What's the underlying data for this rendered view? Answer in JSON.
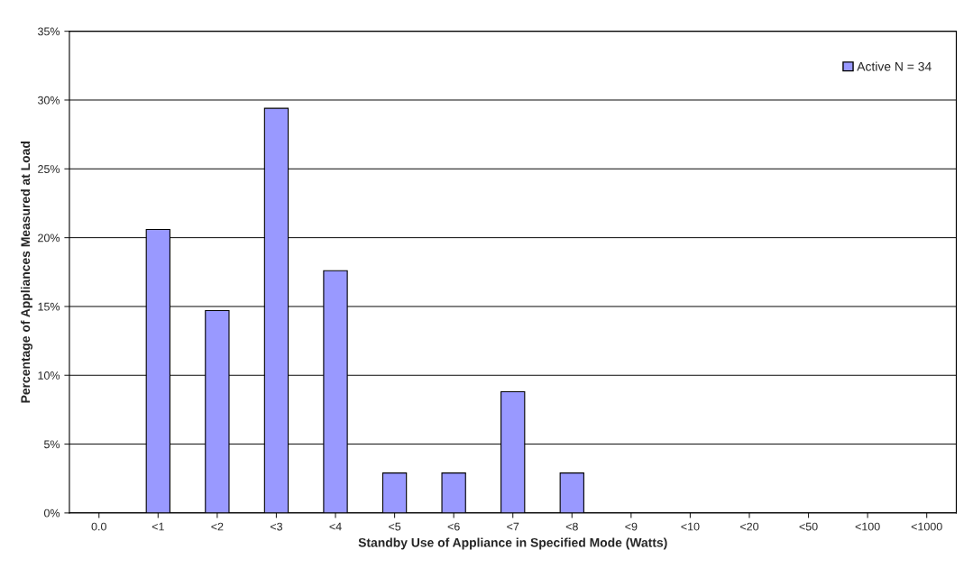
{
  "chart_data": {
    "type": "bar",
    "xlabel": "Standby Use of Appliance in Specified Mode (Watts)",
    "ylabel": "Percentage of Appliances Measured at Load",
    "categories": [
      "0.0",
      "<1",
      "<2",
      "<3",
      "<4",
      "<5",
      "<6",
      "<7",
      "<8",
      "<9",
      "<10",
      "<20",
      "<50",
      "<100",
      "<1000"
    ],
    "series": [
      {
        "name": "Active N = 34",
        "color": "#9999ff",
        "values": [
          0,
          20.6,
          14.7,
          29.4,
          17.6,
          2.9,
          2.9,
          8.8,
          2.9,
          0,
          0,
          0,
          0,
          0,
          0
        ]
      }
    ],
    "ylim": [
      0,
      35
    ],
    "yticks": [
      {
        "value": 0,
        "label": "0%"
      },
      {
        "value": 5,
        "label": "5%"
      },
      {
        "value": 10,
        "label": "10%"
      },
      {
        "value": 15,
        "label": "15%"
      },
      {
        "value": 20,
        "label": "20%"
      },
      {
        "value": 25,
        "label": "25%"
      },
      {
        "value": 30,
        "label": "30%"
      },
      {
        "value": 35,
        "label": "35%"
      }
    ],
    "grid": "y",
    "legend": "top right"
  }
}
